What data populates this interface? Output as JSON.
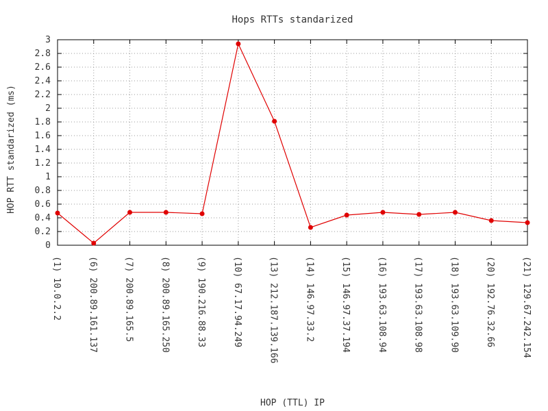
{
  "chart_data": {
    "type": "line",
    "title": "Hops RTTs standarized",
    "xlabel": "HOP (TTL) IP",
    "ylabel": "HOP RTT standarized (ms)",
    "ylim": [
      0,
      3
    ],
    "yticks": [
      "0",
      "0.2",
      "0.4",
      "0.6",
      "0.8",
      "1",
      "1.2",
      "1.4",
      "1.6",
      "1.8",
      "2",
      "2.2",
      "2.4",
      "2.6",
      "2.8",
      "3"
    ],
    "categories": [
      "(1)  10.0.2.2",
      "(6)  200.89.161.137",
      "(7)  200.89.165.5",
      "(8)  200.89.165.250",
      "(9)  190.216.88.33",
      "(10)  67.17.94.249",
      "(13)  212.187.139.166",
      "(14)  146.97.33.2",
      "(15)  146.97.37.194",
      "(16)  193.63.108.94",
      "(17)  193.63.108.98",
      "(18)  193.63.109.90",
      "(20)  192.76.32.66",
      "(21)  129.67.242.154"
    ],
    "series": [
      {
        "color": "#e00000",
        "values": [
          0.47,
          0.03,
          0.48,
          0.48,
          0.46,
          2.94,
          1.81,
          0.26,
          0.44,
          0.48,
          0.45,
          0.48,
          0.36,
          0.33
        ]
      }
    ],
    "grid": true,
    "legend": "none"
  }
}
